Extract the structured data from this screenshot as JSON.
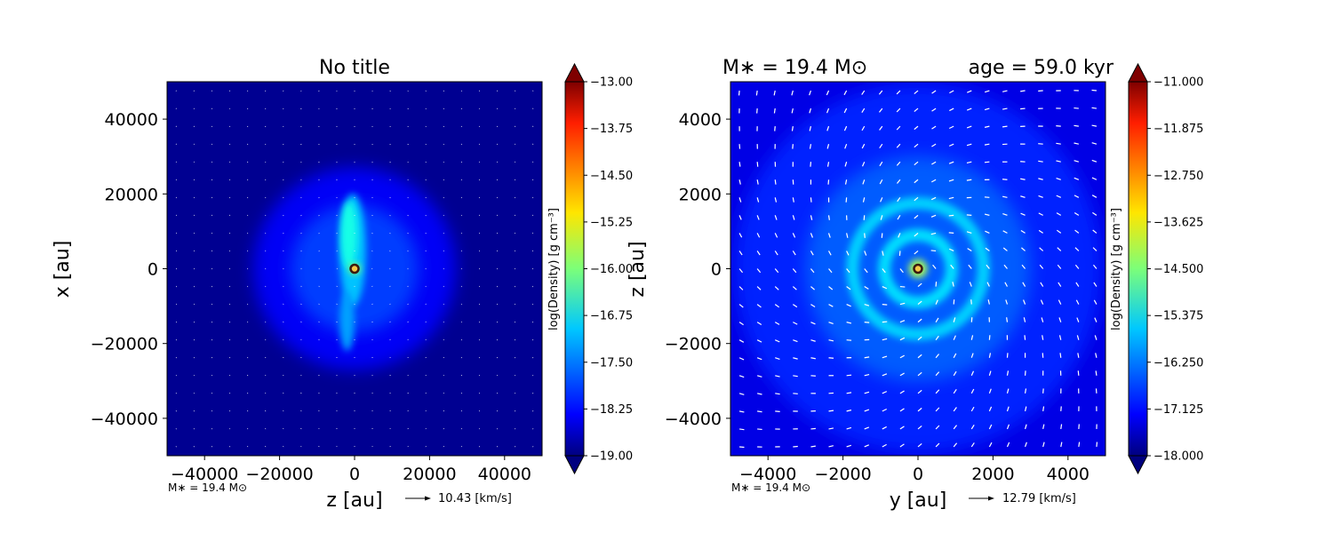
{
  "chart_data": [
    {
      "type": "heatmap",
      "title": "No title",
      "xlabel": "z [au]",
      "ylabel": "x [au]",
      "xlim": [
        -50000,
        50000
      ],
      "ylim": [
        -50000,
        50000
      ],
      "xticks": [
        -40000,
        -20000,
        0,
        20000,
        40000
      ],
      "yticks": [
        -40000,
        -20000,
        0,
        20000,
        40000
      ],
      "xtick_labels": [
        "−40000",
        "−20000",
        "0",
        "20000",
        "40000"
      ],
      "ytick_labels": [
        "−40000",
        "−20000",
        "0",
        "20000",
        "40000"
      ],
      "colorbar": {
        "label": "log(Density) [g cm⁻³]",
        "min": -19.0,
        "max": -13.0,
        "ticks": [
          -13.0,
          -13.75,
          -14.5,
          -15.25,
          -16.0,
          -16.75,
          -17.5,
          -18.25,
          -19.0
        ],
        "tick_labels": [
          "−13.00",
          "−13.75",
          "−14.50",
          "−15.25",
          "−16.00",
          "−16.75",
          "−17.50",
          "−18.25",
          "−19.00"
        ]
      },
      "background_level": -18.9,
      "features": [
        {
          "kind": "halo",
          "cx": 0,
          "cy": 0,
          "r": 27000,
          "level": -18.3
        },
        {
          "kind": "halo",
          "cx": 0,
          "cy": 0,
          "r": 17000,
          "level": -17.9
        },
        {
          "kind": "filament",
          "cx": -500,
          "cy": 5000,
          "rx": 3500,
          "ry": 15000,
          "level": -17.1
        },
        {
          "kind": "filament",
          "cx": -1500,
          "cy": 9000,
          "rx": 2200,
          "ry": 9000,
          "level": -16.6
        },
        {
          "kind": "filament",
          "cx": -2000,
          "cy": -14000,
          "rx": 2000,
          "ry": 8000,
          "level": -17.3
        },
        {
          "kind": "core",
          "cx": 0,
          "cy": 0,
          "r": 1300,
          "level": -15.8
        }
      ],
      "star": {
        "x": 0,
        "y": 0
      },
      "footnote": "M∗ = 19.4 M⊙",
      "velocity_key": "10.43 [km/s]",
      "legend": "none"
    },
    {
      "type": "heatmap",
      "title_left": "M∗  = 19.4 M⊙",
      "title_right": "age = 59.0 kyr",
      "xlabel": "y [au]",
      "ylabel": "z [au]",
      "xlim": [
        -5000,
        5000
      ],
      "ylim": [
        -5000,
        5000
      ],
      "xticks": [
        -4000,
        -2000,
        0,
        2000,
        4000
      ],
      "yticks": [
        -4000,
        -2000,
        0,
        2000,
        4000
      ],
      "xtick_labels": [
        "−4000",
        "−2000",
        "0",
        "2000",
        "4000"
      ],
      "ytick_labels": [
        "−4000",
        "−2000",
        "0",
        "2000",
        "4000"
      ],
      "colorbar": {
        "label": "log(Density) [g cm⁻³]",
        "min": -18.0,
        "max": -11.0,
        "ticks": [
          -11.0,
          -11.875,
          -12.75,
          -13.625,
          -14.5,
          -15.375,
          -16.25,
          -17.125,
          -18.0
        ],
        "tick_labels": [
          "−11.000",
          "−11.875",
          "−12.750",
          "−13.625",
          "−14.500",
          "−15.375",
          "−16.250",
          "−17.125",
          "−18.000"
        ]
      },
      "background_level": -17.3,
      "features": [
        {
          "kind": "halo",
          "cx": 0,
          "cy": 0,
          "r": 4900,
          "level": -16.9
        },
        {
          "kind": "halo",
          "cx": 0,
          "cy": 0,
          "r": 3000,
          "level": -16.5
        },
        {
          "kind": "ring",
          "cx": 0,
          "cy": 0,
          "r": 1750,
          "level": -15.7
        },
        {
          "kind": "ring",
          "cx": 0,
          "cy": 0,
          "r": 900,
          "level": -15.6
        },
        {
          "kind": "core",
          "cx": 0,
          "cy": 0,
          "r": 250,
          "level": -14.2
        }
      ],
      "star": {
        "x": 0,
        "y": 0
      },
      "footnote": "M∗ = 19.4 M⊙",
      "velocity_key": "12.79 [km/s]",
      "legend": "none"
    }
  ]
}
